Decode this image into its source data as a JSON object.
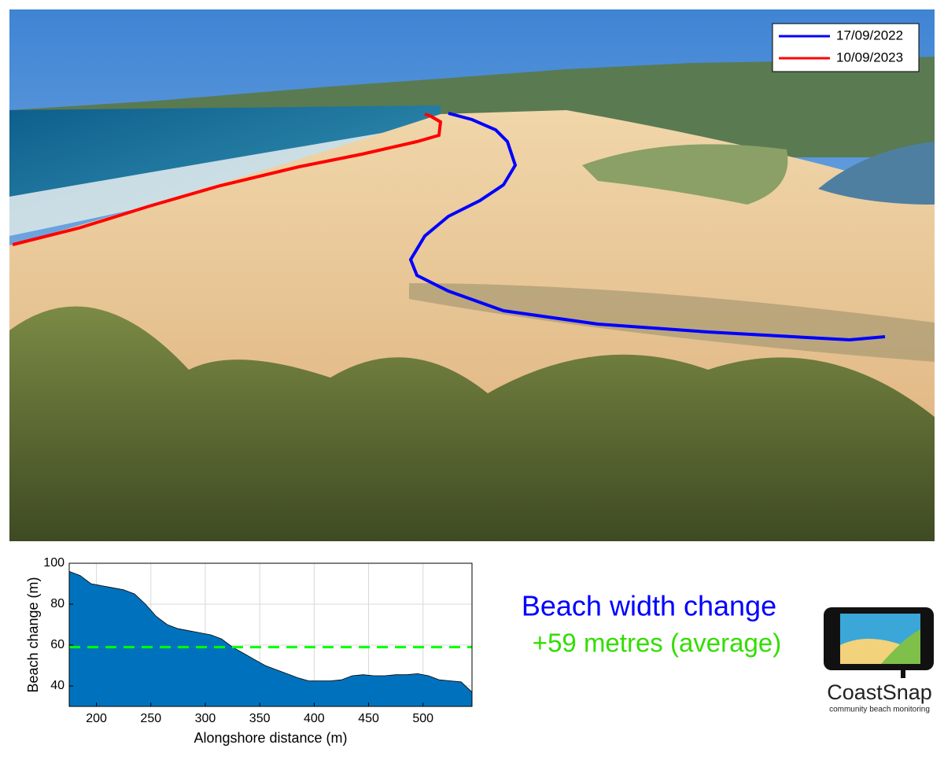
{
  "photo_legend": {
    "series": [
      {
        "name": "17/09/2022",
        "color": "#0000ff"
      },
      {
        "name": "10/09/2023",
        "color": "#ff0000"
      }
    ]
  },
  "chart_data": {
    "type": "area",
    "xlabel": "Alongshore distance (m)",
    "ylabel": "Beach change (m)",
    "x": [
      175,
      185,
      195,
      205,
      215,
      225,
      235,
      245,
      255,
      265,
      275,
      285,
      295,
      305,
      315,
      325,
      335,
      345,
      355,
      365,
      375,
      385,
      395,
      405,
      415,
      425,
      435,
      445,
      455,
      465,
      475,
      485,
      495,
      505,
      515,
      525,
      535,
      545
    ],
    "values": [
      96,
      94,
      90,
      89,
      88,
      87,
      85,
      80,
      74,
      70,
      68,
      67,
      66,
      65,
      63,
      59,
      56,
      53,
      50,
      48,
      46,
      44,
      42.5,
      42.5,
      42.5,
      43,
      45,
      45.5,
      45,
      45,
      45.5,
      45.5,
      46,
      45,
      43,
      42.5,
      42,
      37
    ],
    "color": "#0072bd",
    "mean": 59,
    "mean_color": "#00ff00",
    "xlim": [
      175,
      545
    ],
    "ylim": [
      30,
      100
    ],
    "xticks": [
      200,
      250,
      300,
      350,
      400,
      450,
      500
    ],
    "yticks": [
      40,
      60,
      80,
      100
    ],
    "grid": true
  },
  "summary": {
    "title": "Beach width change",
    "change_text": "+59 metres (average)"
  },
  "logo": {
    "name": "CoastSnap",
    "tagline": "community beach monitoring"
  }
}
